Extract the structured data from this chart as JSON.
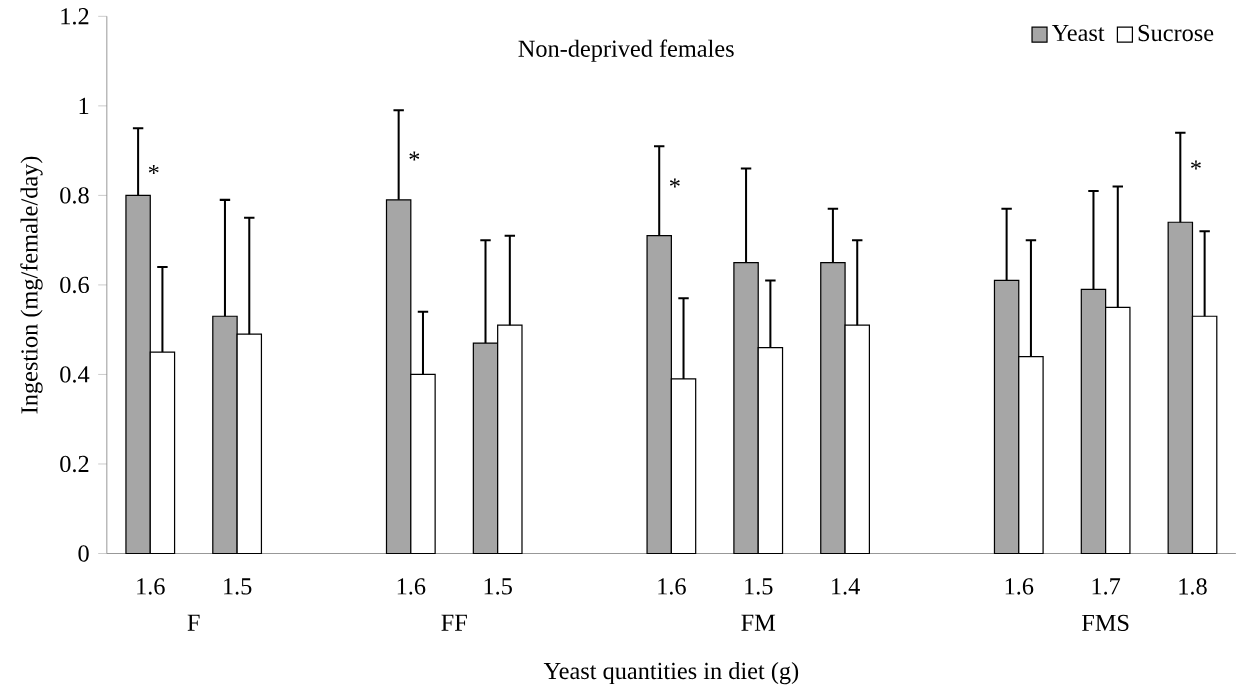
{
  "chart_data": {
    "type": "bar",
    "title": "Non-deprived females",
    "xlabel": "Yeast quantities in diet (g)",
    "ylabel": "Ingestion (mg/female/day)",
    "categories": [
      "1.6",
      "1.5",
      null,
      "1.6",
      "1.5",
      null,
      "1.6",
      "1.5",
      "1.4",
      null,
      "1.6",
      "1.7",
      "1.8"
    ],
    "series": [
      {
        "name": "Yeast",
        "color": "#a6a6a6",
        "values": [
          0.8,
          0.53,
          null,
          0.79,
          0.47,
          null,
          0.71,
          0.65,
          0.65,
          null,
          0.61,
          0.59,
          0.74
        ],
        "errors": [
          [
            0.8,
            0.95
          ],
          [
            0.53,
            0.79
          ],
          null,
          [
            0.79,
            0.99
          ],
          [
            0.47,
            0.7
          ],
          null,
          [
            0.71,
            0.91
          ],
          [
            0.65,
            0.86
          ],
          [
            0.65,
            0.77
          ],
          null,
          [
            0.61,
            0.77
          ],
          [
            0.59,
            0.81
          ],
          [
            0.74,
            0.94
          ]
        ]
      },
      {
        "name": "Sucrose",
        "color": "#ffffff",
        "values": [
          0.45,
          0.49,
          null,
          0.4,
          0.51,
          null,
          0.39,
          0.46,
          0.51,
          null,
          0.44,
          0.55,
          0.53
        ],
        "errors": [
          [
            0.45,
            0.64
          ],
          [
            0.49,
            0.75
          ],
          null,
          [
            0.4,
            0.54
          ],
          [
            0.51,
            0.71
          ],
          null,
          [
            0.39,
            0.57
          ],
          [
            0.46,
            0.61
          ],
          [
            0.51,
            0.7
          ],
          null,
          [
            0.44,
            0.7
          ],
          [
            0.55,
            0.82
          ],
          [
            0.53,
            0.72
          ]
        ]
      }
    ],
    "ylim": [
      0,
      1.2
    ],
    "yticks": [
      0,
      0.2,
      0.4,
      0.6,
      0.8,
      1,
      1.2
    ],
    "legend": "top right",
    "annotations": [
      "F",
      "FF",
      "FM",
      "FMS",
      "*",
      "*",
      "*",
      "*"
    ]
  }
}
